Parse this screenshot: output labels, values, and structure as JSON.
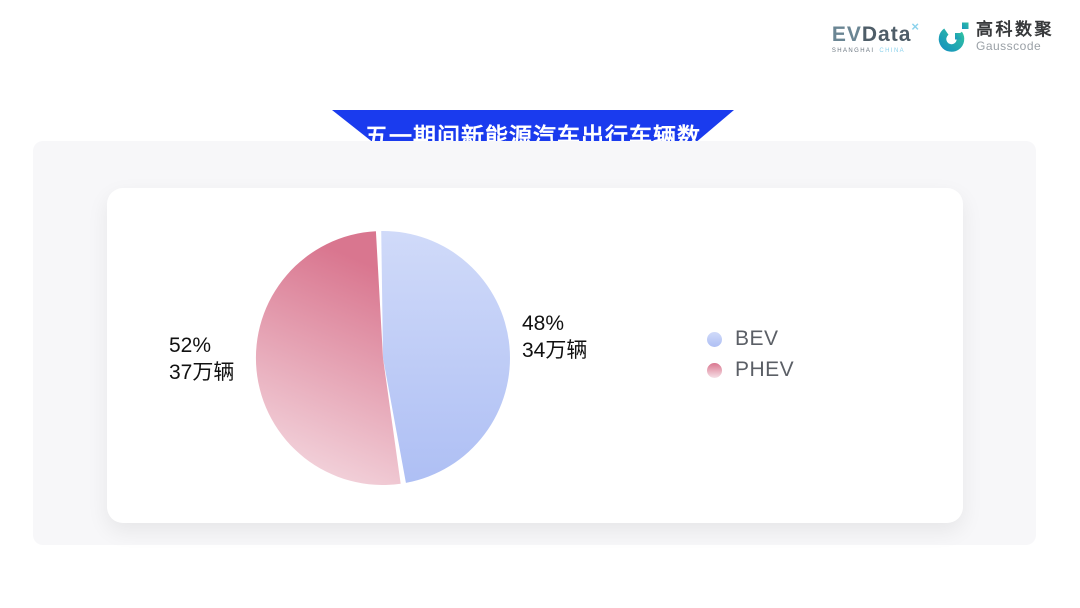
{
  "header": {
    "evdata": {
      "wordmark_ev": "EV",
      "wordmark_data": "Data",
      "superscript": "×",
      "tagline_left": "SHANGHAI",
      "tagline_right": "CHINA",
      "accent_color": "#8bd2ec"
    },
    "gausscode": {
      "name_cn": "高科数聚",
      "name_en": "Gausscode",
      "brand_color_start": "#1795bd",
      "brand_color_end": "#2fbfa3"
    }
  },
  "banner": {
    "title": "五一期间新能源汽车出行车辆数",
    "color": "#1a3bee"
  },
  "chart_data": {
    "type": "pie",
    "title": "五一期间新能源汽车出行车辆数",
    "legend_position": "right",
    "start_angle_deg": -2,
    "gap_deg": 2.4,
    "series": [
      {
        "name": "BEV",
        "percent": 48,
        "value": 34,
        "unit": "万辆",
        "percent_label": "48%",
        "value_label": "34万辆",
        "gradient": [
          "#d0daf9",
          "#aebff4"
        ]
      },
      {
        "name": "PHEV",
        "percent": 52,
        "value": 37,
        "unit": "万辆",
        "percent_label": "52%",
        "value_label": "37万辆",
        "gradient": [
          "#d9768f",
          "#f6e0e6"
        ]
      }
    ]
  }
}
